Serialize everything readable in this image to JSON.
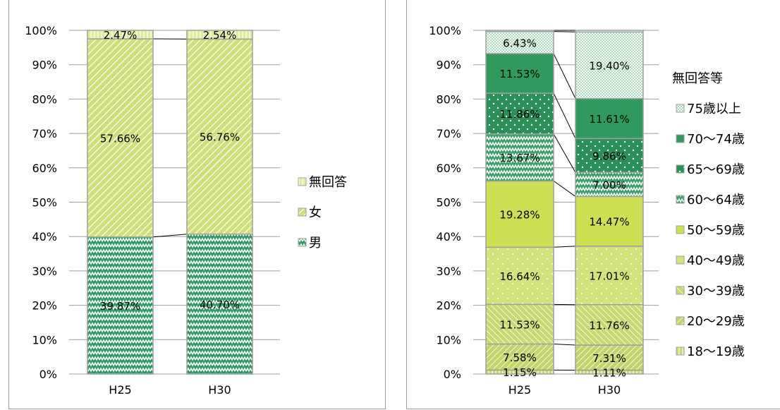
{
  "chart_data": [
    {
      "type": "bar",
      "stacked": true,
      "categories": [
        "H25",
        "H30"
      ],
      "yticks": [
        "0%",
        "10%",
        "20%",
        "30%",
        "40%",
        "50%",
        "60%",
        "70%",
        "80%",
        "90%",
        "100%"
      ],
      "ylim": [
        0,
        100
      ],
      "series": [
        {
          "name": "男",
          "values": [
            39.87,
            40.7
          ],
          "labels": [
            "39.87%",
            "40.70%"
          ],
          "color": "#2e9a62",
          "pattern": "zigzag"
        },
        {
          "name": "女",
          "values": [
            57.66,
            56.76
          ],
          "labels": [
            "57.66%",
            "56.76%"
          ],
          "color": "#cfe07a",
          "pattern": "diag"
        },
        {
          "name": "無回答",
          "values": [
            2.47,
            2.54
          ],
          "labels": [
            "2.47%",
            "2.54%"
          ],
          "color": "#e1ec9a",
          "pattern": "vstripe"
        }
      ],
      "legend": {
        "placement": "right",
        "order": [
          "無回答",
          "女",
          "男"
        ]
      }
    },
    {
      "type": "bar",
      "stacked": true,
      "categories": [
        "H25",
        "H30"
      ],
      "yticks": [
        "0%",
        "10%",
        "20%",
        "30%",
        "40%",
        "50%",
        "60%",
        "70%",
        "80%",
        "90%",
        "100%"
      ],
      "ylim": [
        0,
        100
      ],
      "series": [
        {
          "name": "18～19歳",
          "values": [
            1.15,
            1.11
          ],
          "labels": [
            "1.15%",
            "1.11%"
          ],
          "color": "#c9d96a",
          "pattern": "vstripe"
        },
        {
          "name": "20～29歳",
          "values": [
            7.58,
            7.31
          ],
          "labels": [
            "7.58%",
            "7.31%"
          ],
          "color": "#c3d369",
          "pattern": "diag"
        },
        {
          "name": "30～39歳",
          "values": [
            11.53,
            11.76
          ],
          "labels": [
            "11.53%",
            "11.76%"
          ],
          "color": "#c8d86f",
          "pattern": "diag2"
        },
        {
          "name": "40～49歳",
          "values": [
            16.64,
            17.01
          ],
          "labels": [
            "16.64%",
            "17.01%"
          ],
          "color": "#d3e27b",
          "pattern": "dots"
        },
        {
          "name": "50～59歳",
          "values": [
            19.28,
            14.47
          ],
          "labels": [
            "19.28%",
            "14.47%"
          ],
          "color": "#cddf52",
          "pattern": "solid"
        },
        {
          "name": "60～64歳",
          "values": [
            13.67,
            7.0
          ],
          "labels": [
            "13.67%",
            "7.00%"
          ],
          "color": "#3a9e68",
          "pattern": "zigzag"
        },
        {
          "name": "65～69歳",
          "values": [
            11.86,
            9.86
          ],
          "labels": [
            "11.86%",
            "9.86%"
          ],
          "color": "#2b8f58",
          "pattern": "whitedots"
        },
        {
          "name": "70～74歳",
          "values": [
            11.53,
            11.61
          ],
          "labels": [
            "11.53%",
            "11.61%"
          ],
          "color": "#2e9a5e",
          "pattern": "solid"
        },
        {
          "name": "75歳以上",
          "values": [
            6.43,
            19.4
          ],
          "labels": [
            "6.43%",
            "19.40%"
          ],
          "color": "#a9d9b8",
          "pattern": "check"
        },
        {
          "name": "無回答等",
          "values": [
            0.33,
            0.47
          ],
          "labels": [
            "",
            ""
          ],
          "color": "#ffffff",
          "pattern": "solid"
        }
      ],
      "legend": {
        "placement": "right",
        "title": "無回答等",
        "order": [
          "75歳以上",
          "70～74歳",
          "65～69歳",
          "60～64歳",
          "50～59歳",
          "40～49歳",
          "30～39歳",
          "20～29歳",
          "18～19歳"
        ]
      }
    }
  ]
}
